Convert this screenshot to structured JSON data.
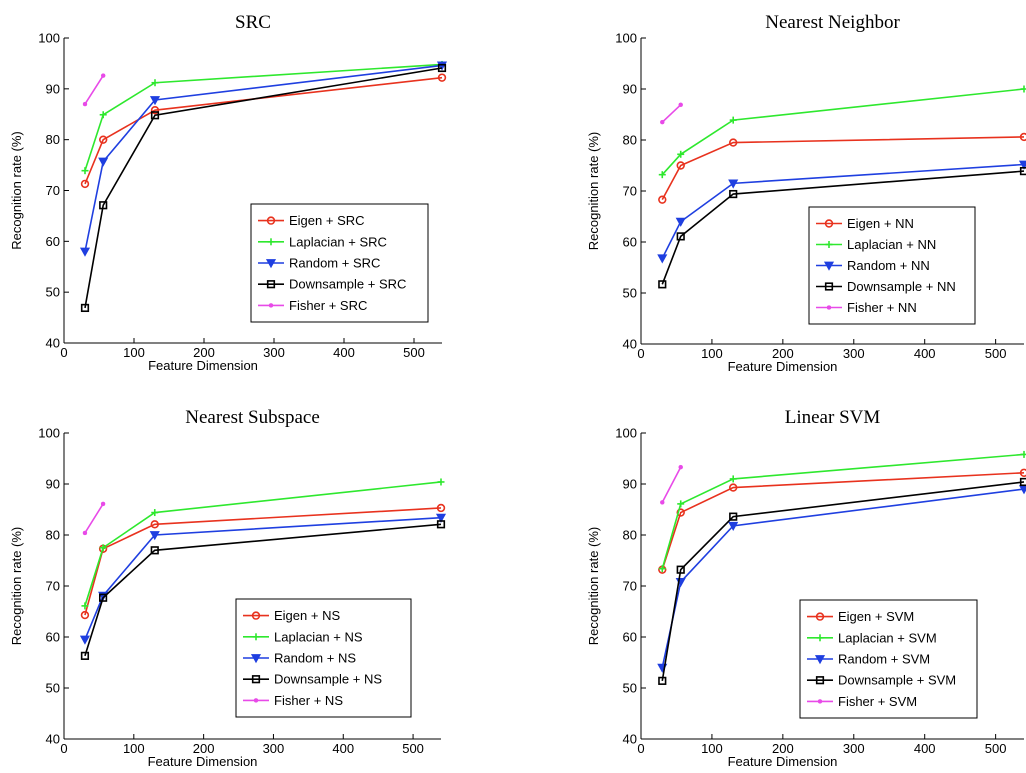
{
  "figure": {
    "background": "#ffffff"
  },
  "chart_data": [
    {
      "type": "line",
      "title": "SRC",
      "xlabel": "Feature Dimension",
      "ylabel": "Recognition rate (%)",
      "xlim": [
        0,
        540
      ],
      "ylim": [
        40,
        100
      ],
      "xticks": [
        0,
        100,
        200,
        300,
        400,
        500
      ],
      "yticks": [
        40,
        50,
        60,
        70,
        80,
        90,
        100
      ],
      "grid": false,
      "legend_position": "lower-right",
      "series": [
        {
          "name": "Eigen + SRC",
          "color": "#e8321e",
          "marker": "circle",
          "x": [
            30,
            56,
            130,
            540
          ],
          "y": [
            71.3,
            80.0,
            85.8,
            92.2
          ]
        },
        {
          "name": "Laplacian + SRC",
          "color": "#2ee82e",
          "marker": "plus",
          "x": [
            30,
            56,
            130,
            540
          ],
          "y": [
            73.9,
            84.9,
            91.2,
            94.8
          ]
        },
        {
          "name": "Random + SRC",
          "color": "#1f3fe0",
          "marker": "triangle-down",
          "x": [
            30,
            56,
            130,
            540
          ],
          "y": [
            58.0,
            75.7,
            87.8,
            94.6
          ]
        },
        {
          "name": "Downsample + SRC",
          "color": "#000000",
          "marker": "square",
          "x": [
            30,
            56,
            130,
            540
          ],
          "y": [
            46.9,
            67.1,
            84.8,
            94.1
          ]
        },
        {
          "name": "Fisher + SRC",
          "color": "#e84ae8",
          "marker": "point",
          "x": [
            30,
            56
          ],
          "y": [
            87.0,
            92.6
          ]
        }
      ]
    },
    {
      "type": "line",
      "title": "Nearest Neighbor",
      "xlabel": "Feature Dimension",
      "ylabel": "Recognition rate (%)",
      "xlim": [
        0,
        540
      ],
      "ylim": [
        40,
        100
      ],
      "xticks": [
        0,
        100,
        200,
        300,
        400,
        500
      ],
      "yticks": [
        40,
        50,
        60,
        70,
        80,
        90,
        100
      ],
      "grid": false,
      "legend_position": "lower-right",
      "series": [
        {
          "name": "Eigen + NN",
          "color": "#e8321e",
          "marker": "circle",
          "x": [
            30,
            56,
            130,
            540
          ],
          "y": [
            68.3,
            75.0,
            79.5,
            80.6
          ]
        },
        {
          "name": "Laplacian + NN",
          "color": "#2ee82e",
          "marker": "plus",
          "x": [
            30,
            56,
            130,
            540
          ],
          "y": [
            73.2,
            77.2,
            83.9,
            90.0
          ]
        },
        {
          "name": "Random + NN",
          "color": "#1f3fe0",
          "marker": "triangle-down",
          "x": [
            30,
            56,
            130,
            540
          ],
          "y": [
            56.8,
            64.0,
            71.5,
            75.2
          ]
        },
        {
          "name": "Downsample + NN",
          "color": "#000000",
          "marker": "square",
          "x": [
            30,
            56,
            130,
            540
          ],
          "y": [
            51.7,
            61.1,
            69.4,
            73.9
          ]
        },
        {
          "name": "Fisher + NN",
          "color": "#e84ae8",
          "marker": "point",
          "x": [
            30,
            56
          ],
          "y": [
            83.5,
            86.9
          ]
        }
      ]
    },
    {
      "type": "line",
      "title": "Nearest Subspace",
      "xlabel": "Feature Dimension",
      "ylabel": "Recognition rate (%)",
      "xlim": [
        0,
        540
      ],
      "ylim": [
        40,
        100
      ],
      "xticks": [
        0,
        100,
        200,
        300,
        400,
        500
      ],
      "yticks": [
        40,
        50,
        60,
        70,
        80,
        90,
        100
      ],
      "grid": false,
      "legend_position": "lower-right",
      "series": [
        {
          "name": "Eigen + NS",
          "color": "#e8321e",
          "marker": "circle",
          "x": [
            30,
            56,
            130,
            540
          ],
          "y": [
            64.3,
            77.3,
            82.1,
            85.3
          ]
        },
        {
          "name": "Laplacian + NS",
          "color": "#2ee82e",
          "marker": "plus",
          "x": [
            30,
            56,
            130,
            540
          ],
          "y": [
            66.1,
            77.5,
            84.4,
            90.4
          ]
        },
        {
          "name": "Random + NS",
          "color": "#1f3fe0",
          "marker": "triangle-down",
          "x": [
            30,
            56,
            130,
            540
          ],
          "y": [
            59.5,
            68.1,
            80.0,
            83.4
          ]
        },
        {
          "name": "Downsample + NS",
          "color": "#000000",
          "marker": "square",
          "x": [
            30,
            56,
            130,
            540
          ],
          "y": [
            56.3,
            67.7,
            77.0,
            82.1
          ]
        },
        {
          "name": "Fisher + NS",
          "color": "#e84ae8",
          "marker": "point",
          "x": [
            30,
            56
          ],
          "y": [
            80.4,
            86.1
          ]
        }
      ]
    },
    {
      "type": "line",
      "title": "Linear SVM",
      "xlabel": "Feature Dimension",
      "ylabel": "Recognition rate (%)",
      "xlim": [
        0,
        540
      ],
      "ylim": [
        40,
        100
      ],
      "xticks": [
        0,
        100,
        200,
        300,
        400,
        500
      ],
      "yticks": [
        40,
        50,
        60,
        70,
        80,
        90,
        100
      ],
      "grid": false,
      "legend_position": "lower-right",
      "series": [
        {
          "name": "Eigen + SVM",
          "color": "#e8321e",
          "marker": "circle",
          "x": [
            30,
            56,
            130,
            540
          ],
          "y": [
            73.2,
            84.4,
            89.3,
            92.2
          ]
        },
        {
          "name": "Laplacian + SVM",
          "color": "#2ee82e",
          "marker": "plus",
          "x": [
            30,
            56,
            130,
            540
          ],
          "y": [
            73.4,
            86.1,
            91.0,
            95.8
          ]
        },
        {
          "name": "Random + SVM",
          "color": "#1f3fe0",
          "marker": "triangle-down",
          "x": [
            30,
            56,
            130,
            540
          ],
          "y": [
            54.0,
            70.8,
            81.8,
            89.0
          ]
        },
        {
          "name": "Downsample + SVM",
          "color": "#000000",
          "marker": "square",
          "x": [
            30,
            56,
            130,
            540
          ],
          "y": [
            51.4,
            73.2,
            83.6,
            90.4
          ]
        },
        {
          "name": "Fisher + SVM",
          "color": "#e84ae8",
          "marker": "point",
          "x": [
            30,
            56
          ],
          "y": [
            86.4,
            93.3
          ]
        }
      ]
    }
  ]
}
